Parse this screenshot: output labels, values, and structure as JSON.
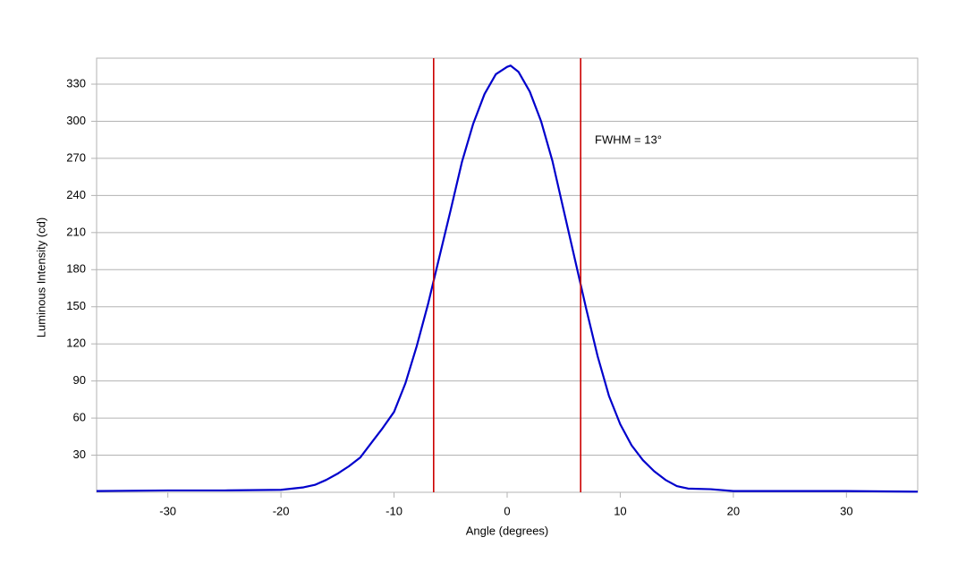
{
  "chart_data": {
    "type": "line",
    "x_label": "Angle (degrees)",
    "y_label": "Luminous Intensity (cd)",
    "annotation": "FWHM = 13°",
    "xlim": [
      -36.3,
      36.3
    ],
    "ylim": [
      0,
      351
    ],
    "xticks": [
      -30,
      -20,
      -10,
      0,
      10,
      20,
      30
    ],
    "yticks": [
      30,
      60,
      90,
      120,
      150,
      180,
      210,
      240,
      270,
      300,
      330
    ],
    "grid": true,
    "x": [
      -36.3,
      -30,
      -25,
      -20,
      -18,
      -17,
      -16,
      -15,
      -14,
      -13,
      -12,
      -11,
      -10,
      -9,
      -8,
      -7,
      -6,
      -5,
      -4,
      -3,
      -2,
      -1,
      0,
      0.3,
      1,
      2,
      3,
      4,
      5,
      6,
      7,
      8,
      9,
      10,
      11,
      12,
      13,
      14,
      15,
      16,
      18,
      20,
      25,
      30,
      36.3
    ],
    "series": [
      {
        "color": "#0000cc",
        "values": [
          1,
          1.5,
          1.5,
          2,
          4,
          6,
          10,
          15,
          21,
          28,
          40,
          52,
          65,
          88,
          118,
          152,
          190,
          228,
          267,
          298,
          322,
          338,
          344,
          345,
          340,
          324,
          300,
          268,
          228,
          188,
          148,
          110,
          78,
          55,
          38,
          26,
          17,
          10,
          5,
          3,
          2.5,
          1,
          1,
          1,
          0.5
        ]
      }
    ],
    "vlines": {
      "color": "#cc0000",
      "x": [
        -6.5,
        6.5
      ]
    }
  }
}
